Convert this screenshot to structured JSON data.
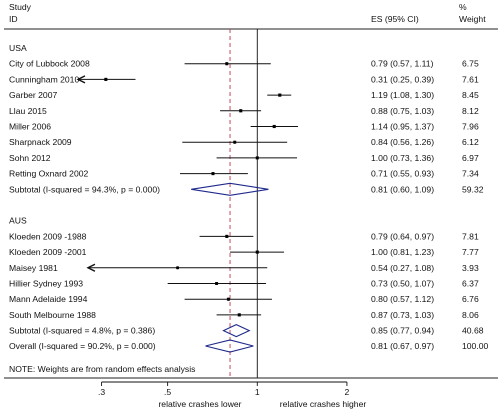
{
  "headers": {
    "study": "Study",
    "id": "ID",
    "es": "ES (95% CI)",
    "pct": "%",
    "weight": "Weight"
  },
  "chart_data": {
    "type": "forest",
    "x_scale": "log",
    "xlim": [
      0.25,
      2.3
    ],
    "ticks": [
      ".3",
      ".5",
      "1",
      "2"
    ],
    "tick_values": [
      0.3,
      0.5,
      1,
      2
    ],
    "overall_line": 0.81,
    "xlabel_left": "relative crashes lower",
    "xlabel_right": "relative crashes higher",
    "note": "NOTE: Weights are from random effects analysis",
    "groups": [
      {
        "name": "USA",
        "studies": [
          {
            "id": "City of Lubbock 2008",
            "es": 0.79,
            "lo": 0.57,
            "hi": 1.11,
            "label": "0.79 (0.57, 1.11)",
            "weight": "6.75",
            "arrow": false
          },
          {
            "id": "Cunningham 2010",
            "es": 0.31,
            "lo": 0.25,
            "hi": 0.39,
            "label": "0.31 (0.25, 0.39)",
            "weight": "7.61",
            "arrow": true
          },
          {
            "id": "Garber 2007",
            "es": 1.19,
            "lo": 1.08,
            "hi": 1.3,
            "label": "1.19 (1.08, 1.30)",
            "weight": "8.45",
            "arrow": false
          },
          {
            "id": "Llau 2015",
            "es": 0.88,
            "lo": 0.75,
            "hi": 1.03,
            "label": "0.88 (0.75, 1.03)",
            "weight": "8.12",
            "arrow": false
          },
          {
            "id": "Miller 2006",
            "es": 1.14,
            "lo": 0.95,
            "hi": 1.37,
            "label": "1.14 (0.95, 1.37)",
            "weight": "7.96",
            "arrow": false
          },
          {
            "id": "Sharpnack 2009",
            "es": 0.84,
            "lo": 0.56,
            "hi": 1.26,
            "label": "0.84 (0.56, 1.26)",
            "weight": "6.12",
            "arrow": false
          },
          {
            "id": "Sohn 2012",
            "es": 1.0,
            "lo": 0.73,
            "hi": 1.36,
            "label": "1.00 (0.73, 1.36)",
            "weight": "6.97",
            "arrow": false
          },
          {
            "id": "Retting Oxnard 2002",
            "es": 0.71,
            "lo": 0.55,
            "hi": 0.93,
            "label": "0.71 (0.55, 0.93)",
            "weight": "7.34",
            "arrow": false
          }
        ],
        "subtotal": {
          "label": "Subtotal  (I-squared = 94.3%, p = 0.000)",
          "es": 0.81,
          "lo": 0.6,
          "hi": 1.09,
          "es_label": "0.81 (0.60, 1.09)",
          "weight": "59.32"
        }
      },
      {
        "name": "AUS",
        "studies": [
          {
            "id": "Kloeden 2009 -1988",
            "es": 0.79,
            "lo": 0.64,
            "hi": 0.97,
            "label": "0.79 (0.64, 0.97)",
            "weight": "7.81",
            "arrow": false
          },
          {
            "id": "Kloeden 2009 -2001",
            "es": 1.0,
            "lo": 0.81,
            "hi": 1.23,
            "label": "1.00 (0.81, 1.23)",
            "weight": "7.77",
            "arrow": false
          },
          {
            "id": "Maisey 1981",
            "es": 0.54,
            "lo": 0.27,
            "hi": 1.08,
            "label": "0.54 (0.27, 1.08)",
            "weight": "3.93",
            "arrow": true
          },
          {
            "id": "Hillier Sydney 1993",
            "es": 0.73,
            "lo": 0.5,
            "hi": 1.07,
            "label": "0.73 (0.50, 1.07)",
            "weight": "6.37",
            "arrow": false
          },
          {
            "id": "Mann Adelaide 1994",
            "es": 0.8,
            "lo": 0.57,
            "hi": 1.12,
            "label": "0.80 (0.57, 1.12)",
            "weight": "6.76",
            "arrow": false
          },
          {
            "id": "South Melbourne 1988",
            "es": 0.87,
            "lo": 0.73,
            "hi": 1.03,
            "label": "0.87 (0.73, 1.03)",
            "weight": "8.06",
            "arrow": false
          }
        ],
        "subtotal": {
          "label": "Subtotal  (I-squared = 4.8%, p = 0.386)",
          "es": 0.85,
          "lo": 0.77,
          "hi": 0.94,
          "es_label": "0.85 (0.77, 0.94)",
          "weight": "40.68"
        }
      }
    ],
    "overall": {
      "label": "Overall  (I-squared = 90.2%, p = 0.000)",
      "es": 0.81,
      "lo": 0.67,
      "hi": 0.97,
      "es_label": "0.81 (0.67, 0.97)",
      "weight": "100.00"
    }
  }
}
